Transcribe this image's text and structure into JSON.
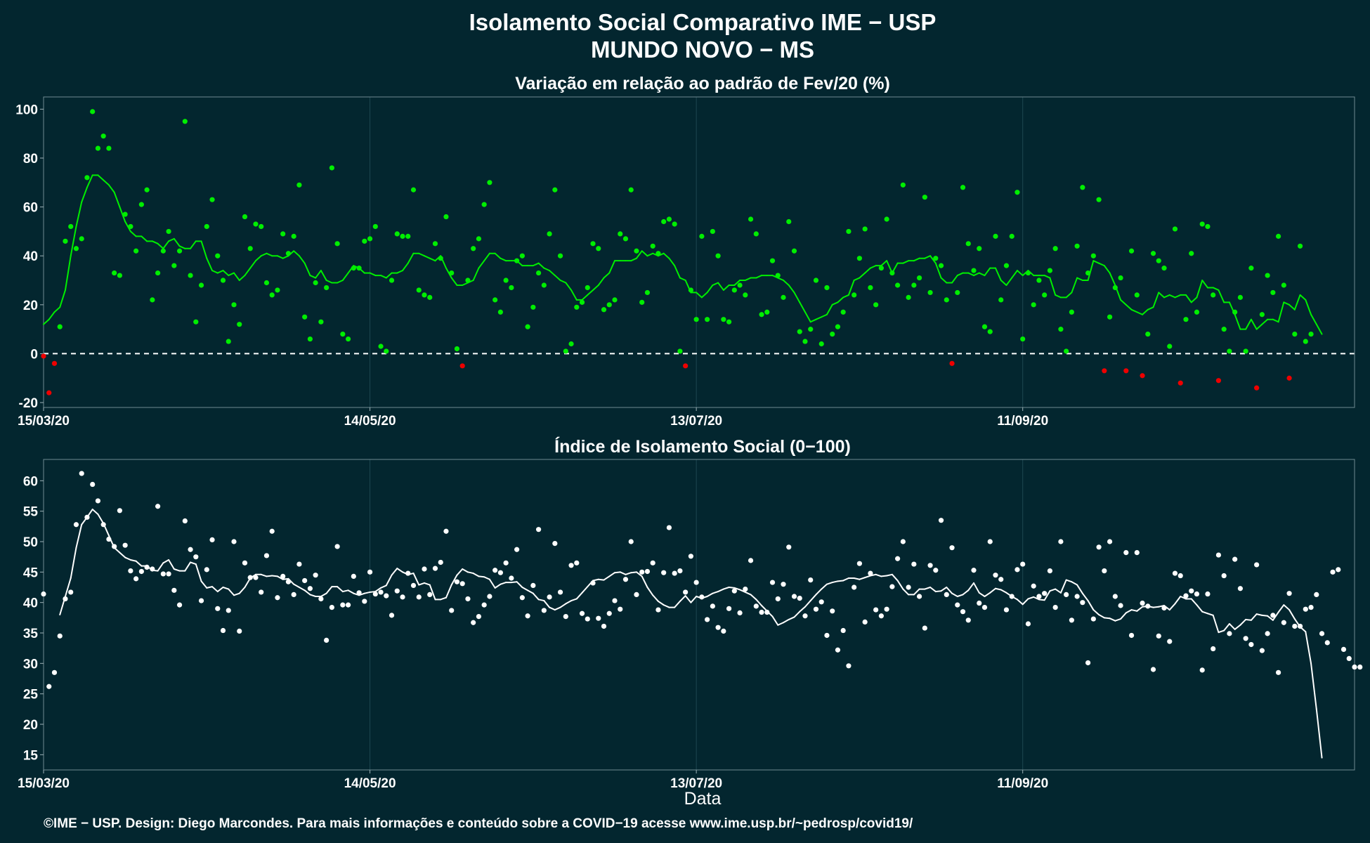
{
  "header": {
    "title_line1": "Isolamento Social Comparativo IME − USP",
    "title_line2": "MUNDO NOVO − MS"
  },
  "footer": {
    "credit": "©IME − USP. Design: Diego Marcondes. Para mais informações e conteúdo sobre a COVID−19 acesse www.ime.usp.br/~pedrosp/covid19/"
  },
  "colors": {
    "background": "#03262f",
    "positive": "#00ee00",
    "negative": "#ee0000",
    "index": "#ffffff",
    "grid": "#1d4650"
  },
  "chart_data": [
    {
      "type": "scatter",
      "title": "Variação em relação ao padrão de Fev/20 (%)",
      "xlabel": "",
      "ylabel": "",
      "x_start": "15/03/20",
      "x_end_day": 241,
      "xticks": [
        {
          "day": 0,
          "label": "15/03/20"
        },
        {
          "day": 60,
          "label": "14/05/20"
        },
        {
          "day": 120,
          "label": "13/07/20"
        },
        {
          "day": 180,
          "label": "11/09/20"
        }
      ],
      "yticks": [
        100,
        80,
        60,
        40,
        20,
        0,
        -20
      ],
      "ylim": [
        -22,
        105
      ],
      "reference_line": 0,
      "series": [
        {
          "kind": "points",
          "values": [
            -1,
            -16,
            -4,
            11,
            46,
            52,
            43,
            47,
            72,
            99,
            84,
            89,
            84,
            33,
            32,
            57,
            52,
            42,
            61,
            67,
            22,
            33,
            42,
            50,
            36,
            42,
            95,
            32,
            13,
            28,
            52,
            63,
            40,
            30,
            5,
            20,
            12,
            56,
            43,
            53,
            52,
            29,
            24,
            26,
            49,
            41,
            48,
            69,
            15,
            6,
            29,
            13,
            27,
            76,
            45,
            8,
            6,
            35,
            35,
            46,
            47,
            52,
            3,
            1,
            30,
            49,
            48,
            48,
            67,
            26,
            24,
            23,
            45,
            39,
            56,
            33,
            2,
            -5,
            30,
            43,
            47,
            61,
            70,
            22,
            17,
            30,
            27,
            38,
            40,
            11,
            19,
            33,
            28,
            49,
            67,
            40,
            1,
            4,
            19,
            21,
            27,
            45,
            43,
            18,
            20,
            22,
            49,
            47,
            67,
            42,
            21,
            25,
            44,
            41,
            54,
            55,
            53,
            1,
            -5,
            26,
            14,
            48,
            14,
            50,
            40,
            14,
            13,
            26,
            28,
            24,
            55,
            49,
            16,
            17,
            38,
            32,
            23,
            54,
            42,
            9,
            5,
            10,
            30,
            4,
            27,
            8,
            11,
            17,
            50,
            24,
            39,
            51,
            27,
            20,
            35,
            55,
            33,
            28,
            69,
            23,
            28,
            31,
            64,
            25,
            39,
            36,
            22,
            -4,
            25,
            68,
            45,
            34,
            43,
            11,
            9,
            48,
            22,
            36,
            48,
            66,
            6,
            33,
            20,
            30,
            24,
            34,
            43,
            10,
            1,
            17,
            44,
            68,
            33,
            40,
            63,
            -7,
            15,
            27,
            31,
            -7,
            42,
            24,
            -9,
            8,
            41,
            38,
            35,
            3,
            51,
            -12,
            14,
            41,
            17,
            53,
            52,
            24,
            -11,
            10,
            1,
            17,
            23,
            1,
            35,
            -14,
            16,
            32,
            25,
            48,
            28,
            -10,
            8,
            44,
            5,
            8
          ]
        },
        {
          "kind": "moving_average",
          "start_day": 0,
          "values": [
            12,
            14,
            17,
            19,
            26,
            40,
            52,
            62,
            68,
            73,
            73,
            71,
            69,
            66,
            60,
            54,
            50,
            48,
            48,
            46,
            46,
            45,
            43,
            46,
            47,
            44,
            43,
            43,
            46,
            46,
            39,
            34,
            33,
            34,
            32,
            33,
            30,
            32,
            35,
            38,
            40,
            41,
            40,
            40,
            39,
            40,
            42,
            40,
            37,
            32,
            31,
            34,
            30,
            29,
            29,
            30,
            33,
            36,
            35,
            33,
            33,
            32,
            32,
            31,
            33,
            33,
            34,
            37,
            41,
            41,
            40,
            39,
            38,
            40,
            35,
            31,
            28,
            28,
            29,
            30,
            35,
            38,
            41,
            41,
            39,
            38,
            38,
            38,
            36,
            36,
            36,
            37,
            35,
            34,
            32,
            30,
            29,
            26,
            22,
            22,
            24,
            26,
            28,
            31,
            33,
            38,
            38,
            38,
            38,
            39,
            42,
            40,
            41,
            40,
            41,
            39,
            36,
            31,
            30,
            25,
            25,
            23,
            25,
            28,
            29,
            26,
            28,
            28,
            30,
            30,
            31,
            31,
            32,
            32,
            32,
            31,
            30,
            28,
            25,
            21,
            17,
            13,
            14,
            15,
            16,
            20,
            21,
            23,
            24,
            30,
            31,
            33,
            35,
            36,
            36,
            38,
            33,
            37,
            37,
            38,
            38,
            39,
            39,
            40,
            37,
            31,
            29,
            29,
            32,
            33,
            33,
            32,
            33,
            32,
            35,
            35,
            30,
            28,
            31,
            34,
            32,
            34,
            32,
            32,
            32,
            31,
            24,
            23,
            23,
            25,
            31,
            30,
            30,
            38,
            37,
            36,
            33,
            28,
            22,
            20,
            18,
            17,
            16,
            18,
            19,
            25,
            23,
            24,
            23,
            24,
            24,
            21,
            23,
            30,
            27,
            27,
            26,
            21,
            21,
            16,
            10,
            10,
            14,
            10,
            12,
            14,
            14,
            13,
            21,
            20,
            18,
            24,
            22,
            16,
            12,
            8
          ]
        }
      ]
    },
    {
      "type": "scatter",
      "title": "Índice de Isolamento Social (0−100)",
      "xlabel": "Data",
      "ylabel": "",
      "x_start": "15/03/20",
      "x_end_day": 241,
      "xticks": [
        {
          "day": 0,
          "label": "15/03/20"
        },
        {
          "day": 60,
          "label": "14/05/20"
        },
        {
          "day": 120,
          "label": "13/07/20"
        },
        {
          "day": 180,
          "label": "11/09/20"
        }
      ],
      "yticks": [
        60,
        55,
        50,
        45,
        40,
        35,
        30,
        25,
        20,
        15
      ],
      "ylim": [
        12.5,
        63.5
      ],
      "series": [
        {
          "kind": "points",
          "values": [
            41.4,
            26.2,
            28.5,
            34.5,
            40.6,
            41.7,
            52.8,
            61.2,
            54.0,
            59.4,
            56.7,
            52.8,
            50.4,
            49.2,
            55.1,
            49.4,
            45.2,
            43.9,
            45.1,
            45.8,
            45.5,
            55.8,
            44.7,
            44.7,
            42.0,
            39.6,
            53.4,
            48.7,
            47.5,
            40.3,
            45.4,
            50.3,
            39.0,
            35.4,
            38.7,
            50.0,
            35.3,
            46.5,
            44.1,
            44.1,
            41.7,
            47.7,
            51.7,
            40.8,
            44.3,
            43.4,
            41.3,
            46.3,
            43.6,
            42.3,
            44.5,
            40.6,
            33.8,
            39.2,
            49.2,
            39.6,
            39.6,
            44.3,
            41.6,
            40.2,
            45.0,
            41.4,
            41.7,
            41.1,
            37.9,
            41.9,
            40.9,
            44.8,
            42.8,
            40.9,
            45.5,
            41.3,
            45.6,
            46.6,
            51.7,
            38.7,
            43.4,
            43.1,
            40.6,
            36.7,
            37.7,
            39.6,
            41.0,
            45.3,
            44.9,
            46.5,
            44.0,
            48.7,
            40.8,
            37.8,
            42.8,
            52.0,
            38.7,
            40.9,
            49.7,
            41.7,
            37.7,
            46.1,
            46.5,
            38.2,
            37.3,
            43.2,
            37.4,
            36.1,
            38.2,
            40.3,
            38.9,
            43.8,
            50.0,
            41.3,
            45.0,
            45.1,
            46.5,
            38.8,
            44.9,
            52.3,
            44.8,
            45.2,
            41.7,
            47.6,
            43.3,
            40.9,
            37.2,
            39.4,
            35.9,
            35.3,
            39.0,
            41.9,
            38.3,
            42.2,
            46.9,
            39.4,
            38.4,
            38.4,
            43.3,
            40.6,
            43.0,
            49.1,
            41.0,
            40.7,
            37.8,
            43.7,
            38.9,
            40.1,
            34.6,
            38.6,
            32.2,
            35.4,
            29.6,
            42.5,
            46.4,
            36.8,
            44.8,
            38.8,
            37.8,
            38.9,
            42.6,
            47.2,
            50.0,
            42.5,
            46.3,
            41.0,
            35.8,
            46.1,
            45.3,
            53.5,
            41.3,
            49.0,
            39.6,
            38.5,
            37.1,
            45.3,
            39.9,
            39.2,
            50.0,
            44.5,
            43.8,
            38.8,
            41.0,
            45.4,
            46.3,
            36.5,
            42.7,
            41.0,
            41.5,
            45.2,
            39.2,
            50.0,
            41.3,
            37.1,
            41.0,
            40.0,
            30.1,
            37.3,
            49.1,
            45.2,
            50.0,
            41.0,
            39.5,
            48.2,
            34.6,
            48.2,
            39.9,
            39.4,
            29.0,
            34.5,
            39.1,
            33.6,
            44.8,
            44.4,
            41.1,
            41.9,
            41.4,
            28.9,
            41.4,
            32.4,
            47.8,
            44.4,
            34.9,
            47.1,
            42.3,
            34.1,
            33.1,
            46.2,
            32.1,
            34.9,
            37.9,
            28.5,
            36.7,
            41.5,
            36.1,
            36.1,
            38.9,
            39.2,
            41.3,
            34.9,
            33.4,
            45.0,
            45.4,
            32.3,
            30.8,
            29.4,
            29.4
          ]
        },
        {
          "kind": "moving_average",
          "start_day": 3,
          "values": [
            38.0,
            41.0,
            44.0,
            49.0,
            52.8,
            54.0,
            55.3,
            54.5,
            53.0,
            51.0,
            49.0,
            48.2,
            47.4,
            47.0,
            46.8,
            46.0,
            46.0,
            45.3,
            45.2,
            46.5,
            47.0,
            45.5,
            45.2,
            45.2,
            46.6,
            46.3,
            43.5,
            42.4,
            42.6,
            41.8,
            42.5,
            42.2,
            41.2,
            41.5,
            42.5,
            44.0,
            44.6,
            44.6,
            44.3,
            44.4,
            44.3,
            43.8,
            43.9,
            43.0,
            42.5,
            42.0,
            41.3,
            41.0,
            41.0,
            41.5,
            42.6,
            42.6,
            41.8,
            42.0,
            41.5,
            41.2,
            41.5,
            41.7,
            41.8,
            42.4,
            42.8,
            44.5,
            45.6,
            45.0,
            44.6,
            44.8,
            42.9,
            43.2,
            42.9,
            40.5,
            40.5,
            40.8,
            42.9,
            44.5,
            45.5,
            45.0,
            44.8,
            44.3,
            44.2,
            43.8,
            42.4,
            43.0,
            43.3,
            43.3,
            43.4,
            42.5,
            42.0,
            41.5,
            40.5,
            40.3,
            39.2,
            38.8,
            39.2,
            39.8,
            40.3,
            40.6,
            41.6,
            42.6,
            43.6,
            43.8,
            43.7,
            44.3,
            44.9,
            45.0,
            44.6,
            44.9,
            45.0,
            44.3,
            42.5,
            41.2,
            40.2,
            39.6,
            39.2,
            39.2,
            40.2,
            41.1,
            40.0,
            41.0,
            40.7,
            41.0,
            41.5,
            41.8,
            42.2,
            42.5,
            42.4,
            42.1,
            41.7,
            41.3,
            40.5,
            39.5,
            38.6,
            37.7,
            36.3,
            36.7,
            37.2,
            37.6,
            38.5,
            39.3,
            40.3,
            41.3,
            42.2,
            43.0,
            43.3,
            43.5,
            43.6,
            44.0,
            44.0,
            43.8,
            44.1,
            44.4,
            44.6,
            44.3,
            44.4,
            44.6,
            43.6,
            42.2,
            41.3,
            41.3,
            42.2,
            42.2,
            42.5,
            41.8,
            41.9,
            42.5,
            41.5,
            41.0,
            41.3,
            42.0,
            43.2,
            41.6,
            41.0,
            41.6,
            42.3,
            42.1,
            41.6,
            41.0,
            40.5,
            39.7,
            40.6,
            40.9,
            40.5,
            40.4,
            41.9,
            42.2,
            41.6,
            43.7,
            43.4,
            42.9,
            41.5,
            40.3,
            38.8,
            38.0,
            37.5,
            37.4,
            37.0,
            37.3,
            38.3,
            38.8,
            38.6,
            39.3,
            39.4,
            39.2,
            39.3,
            39.5,
            38.8,
            39.8,
            41.0,
            40.6,
            40.6,
            39.6,
            38.5,
            38.2,
            37.9,
            35.1,
            35.4,
            36.5,
            35.6,
            36.3,
            37.2,
            37.1,
            38.1,
            37.9,
            37.8,
            37.1,
            38.4,
            39.6,
            38.8,
            37.3,
            36.0,
            35.2,
            30.0,
            22.5,
            14.5
          ]
        }
      ]
    }
  ]
}
